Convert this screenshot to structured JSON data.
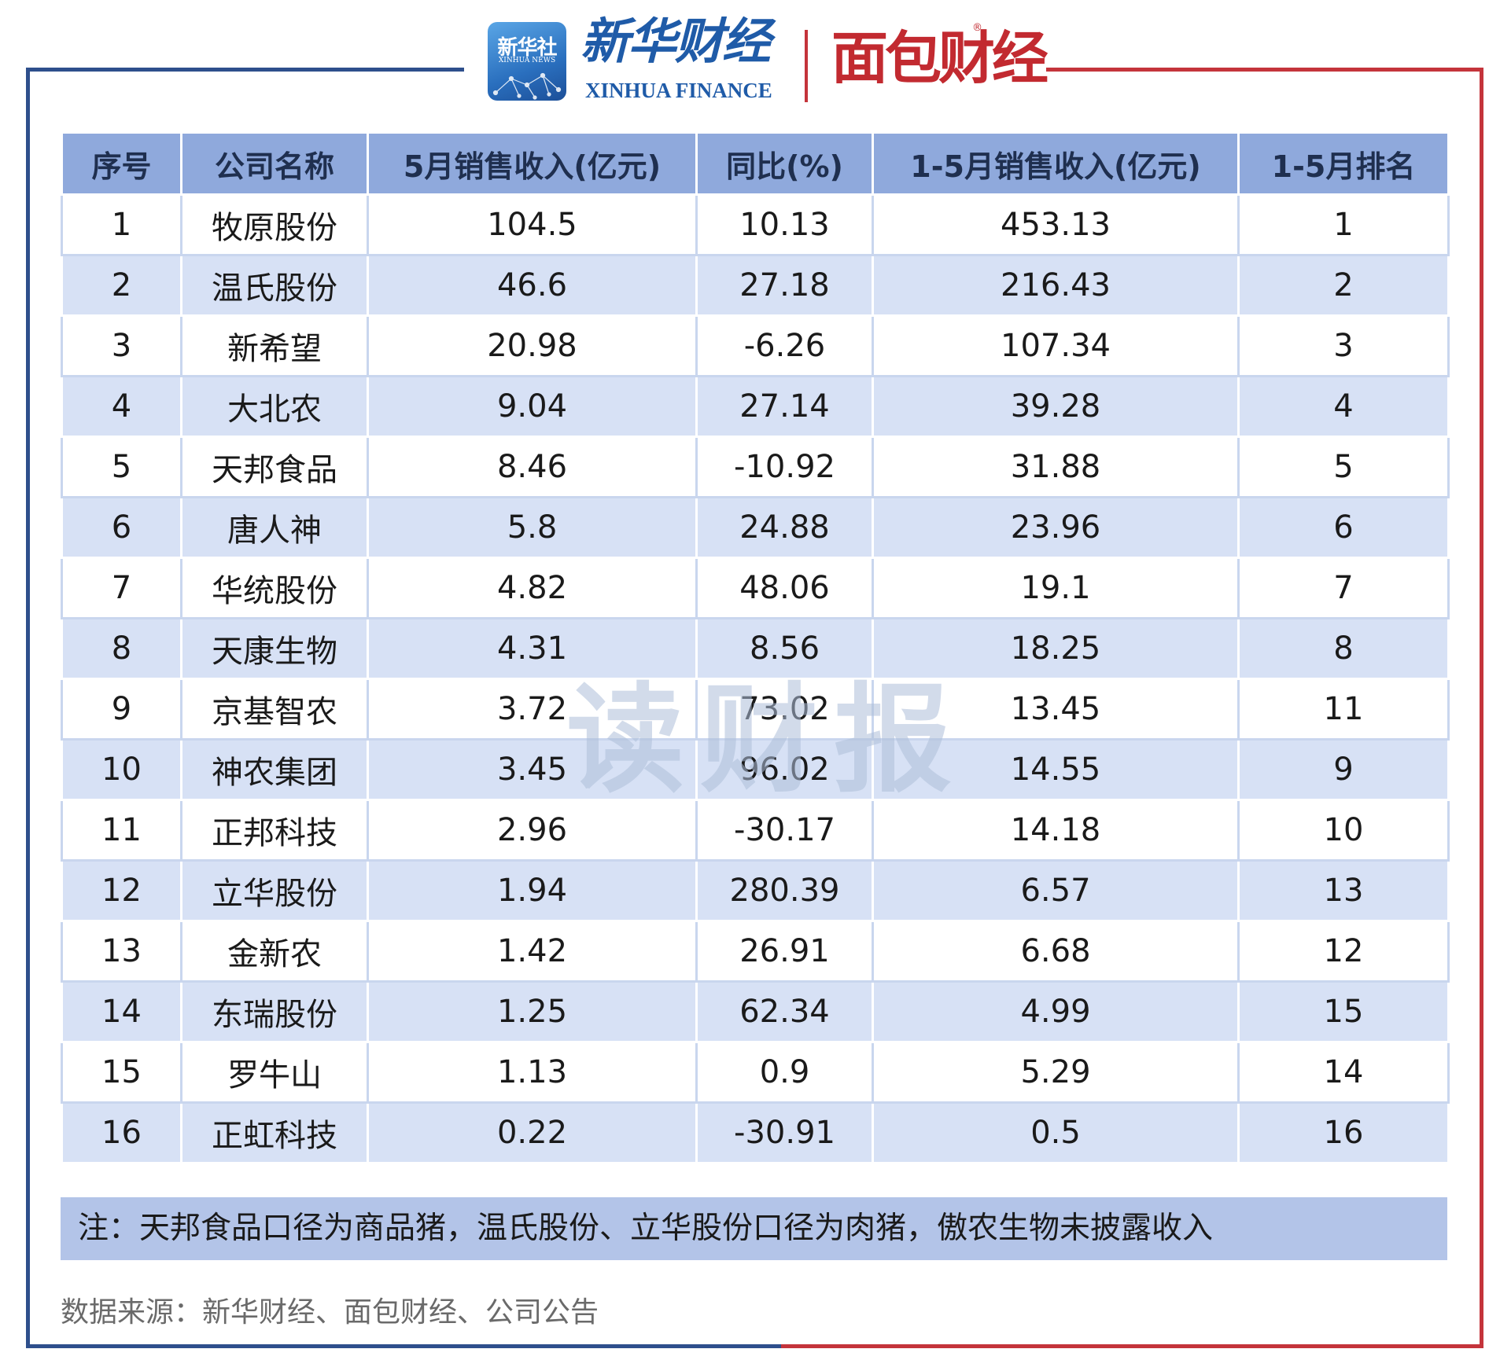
{
  "header": {
    "xinhua_logo_text": "新华社",
    "xinhua_logo_sub": "XINHUA NEWS",
    "xinhua_name": "新华财经",
    "xinhua_sub": "XINHUA FINANCE",
    "mianbao_name": "面包财经",
    "registered_mark": "®"
  },
  "watermark": "读财报",
  "colors": {
    "header_bg": "#8fa9dc",
    "row_alt_bg": "#d7e1f5",
    "note_bg": "#b3c4e8",
    "frame_blue": "#2e4f8c",
    "frame_red": "#c4343b"
  },
  "chart_data": {
    "type": "table",
    "columns": [
      "序号",
      "公司名称",
      "5月销售收入(亿元)",
      "同比(%)",
      "1-5月销售收入(亿元)",
      "1-5月排名"
    ],
    "rows": [
      [
        "1",
        "牧原股份",
        "104.5",
        "10.13",
        "453.13",
        "1"
      ],
      [
        "2",
        "温氏股份",
        "46.6",
        "27.18",
        "216.43",
        "2"
      ],
      [
        "3",
        "新希望",
        "20.98",
        "-6.26",
        "107.34",
        "3"
      ],
      [
        "4",
        "大北农",
        "9.04",
        "27.14",
        "39.28",
        "4"
      ],
      [
        "5",
        "天邦食品",
        "8.46",
        "-10.92",
        "31.88",
        "5"
      ],
      [
        "6",
        "唐人神",
        "5.8",
        "24.88",
        "23.96",
        "6"
      ],
      [
        "7",
        "华统股份",
        "4.82",
        "48.06",
        "19.1",
        "7"
      ],
      [
        "8",
        "天康生物",
        "4.31",
        "8.56",
        "18.25",
        "8"
      ],
      [
        "9",
        "京基智农",
        "3.72",
        "73.02",
        "13.45",
        "11"
      ],
      [
        "10",
        "神农集团",
        "3.45",
        "96.02",
        "14.55",
        "9"
      ],
      [
        "11",
        "正邦科技",
        "2.96",
        "-30.17",
        "14.18",
        "10"
      ],
      [
        "12",
        "立华股份",
        "1.94",
        "280.39",
        "6.57",
        "13"
      ],
      [
        "13",
        "金新农",
        "1.42",
        "26.91",
        "6.68",
        "12"
      ],
      [
        "14",
        "东瑞股份",
        "1.25",
        "62.34",
        "4.99",
        "15"
      ],
      [
        "15",
        "罗牛山",
        "1.13",
        "0.9",
        "5.29",
        "14"
      ],
      [
        "16",
        "正虹科技",
        "0.22",
        "-30.91",
        "0.5",
        "16"
      ]
    ],
    "note": "注：天邦食品口径为商品猪，温氏股份、立华股份口径为肉猪，傲农生物未披露收入",
    "source": "数据来源：新华财经、面包财经、公司公告"
  }
}
